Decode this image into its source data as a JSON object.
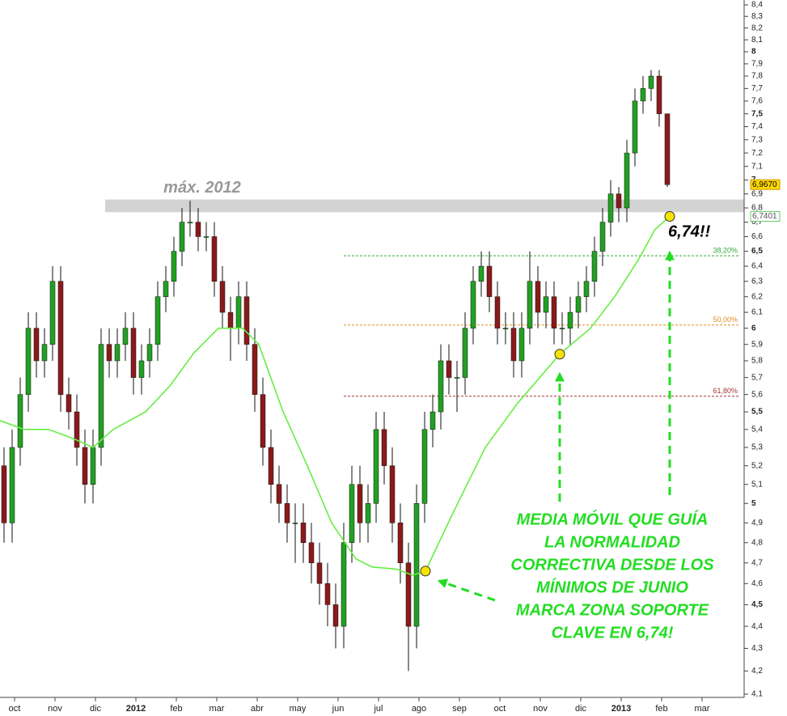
{
  "chart_data": {
    "type": "candlestick",
    "log_scale": true,
    "up_color": "#22a022",
    "down_color": "#8b1a1a",
    "x": [
      -0.26,
      -0.06,
      0.14,
      0.34,
      0.54,
      0.74,
      0.94,
      1.14,
      1.34,
      1.54,
      1.74,
      1.94,
      2.14,
      2.34,
      2.54,
      2.74,
      2.94,
      3.14,
      3.34,
      3.54,
      3.74,
      3.94,
      4.14,
      4.34,
      4.54,
      4.74,
      4.94,
      5.14,
      5.34,
      5.54,
      5.74,
      5.94,
      6.14,
      6.34,
      6.54,
      6.74,
      6.94,
      7.14,
      7.34,
      7.54,
      7.74,
      7.94,
      8.14,
      8.34,
      8.54,
      8.74,
      8.94,
      9.14,
      9.34,
      9.54,
      9.74,
      9.94,
      10.14,
      10.34,
      10.54,
      10.74,
      10.94,
      11.14,
      11.34,
      11.54,
      11.74,
      11.94,
      12.14,
      12.34,
      12.54,
      12.74,
      12.94,
      13.14,
      13.34,
      13.54,
      13.74,
      13.94,
      14.14,
      14.34,
      14.54,
      14.74,
      14.94,
      15.14,
      15.34,
      15.54,
      15.74,
      15.94,
      16.14
    ],
    "open": [
      5.2,
      4.9,
      5.3,
      5.6,
      6.0,
      5.8,
      5.9,
      6.3,
      5.6,
      5.5,
      5.3,
      5.1,
      5.3,
      5.9,
      5.8,
      5.9,
      6.0,
      5.7,
      5.8,
      5.9,
      6.2,
      6.3,
      6.5,
      6.7,
      6.7,
      6.6,
      6.6,
      6.3,
      6.1,
      6.0,
      6.2,
      5.9,
      5.6,
      5.3,
      5.1,
      5.0,
      4.9,
      4.9,
      4.8,
      4.7,
      4.6,
      4.5,
      4.4,
      4.8,
      5.1,
      4.9,
      5.0,
      5.4,
      5.2,
      4.9,
      4.7,
      4.4,
      5.0,
      5.4,
      5.5,
      5.8,
      5.7,
      5.7,
      6.0,
      6.3,
      6.4,
      6.2,
      6.0,
      6.0,
      5.8,
      6.0,
      6.3,
      6.1,
      6.2,
      6.0,
      6.0,
      6.1,
      6.2,
      6.3,
      6.5,
      6.7,
      6.9,
      6.8,
      7.2,
      7.6,
      7.7,
      7.8,
      7.5
    ],
    "high": [
      5.3,
      5.4,
      5.7,
      6.1,
      6.1,
      6.0,
      6.4,
      6.4,
      5.7,
      5.6,
      5.4,
      5.4,
      6.0,
      6.0,
      6.0,
      6.1,
      6.1,
      5.9,
      6.0,
      6.3,
      6.4,
      6.6,
      6.8,
      6.85,
      6.8,
      6.7,
      6.7,
      6.4,
      6.2,
      6.3,
      6.3,
      6.0,
      5.7,
      5.4,
      5.2,
      5.1,
      5.0,
      5.0,
      4.9,
      4.8,
      4.7,
      4.6,
      4.9,
      5.2,
      5.2,
      5.1,
      5.5,
      5.5,
      5.3,
      5.0,
      4.8,
      5.1,
      5.5,
      5.6,
      5.9,
      5.9,
      5.8,
      6.1,
      6.4,
      6.5,
      6.5,
      6.3,
      6.1,
      6.1,
      6.1,
      6.5,
      6.4,
      6.3,
      6.3,
      6.1,
      6.2,
      6.3,
      6.4,
      6.6,
      6.8,
      7.0,
      6.95,
      7.3,
      7.7,
      7.8,
      7.85,
      7.85,
      7.5
    ],
    "low": [
      4.8,
      4.8,
      5.2,
      5.5,
      5.7,
      5.7,
      5.8,
      5.5,
      5.4,
      5.2,
      5.0,
      5.0,
      5.2,
      5.7,
      5.7,
      5.8,
      5.6,
      5.6,
      5.7,
      5.8,
      6.1,
      6.2,
      6.4,
      6.6,
      6.5,
      6.5,
      6.2,
      6.0,
      5.8,
      5.9,
      5.8,
      5.5,
      5.2,
      5.0,
      4.9,
      4.8,
      4.7,
      4.7,
      4.6,
      4.5,
      4.4,
      4.3,
      4.3,
      4.7,
      4.8,
      4.8,
      4.9,
      5.1,
      4.8,
      4.6,
      4.2,
      4.3,
      4.9,
      5.3,
      5.4,
      5.6,
      5.5,
      5.6,
      5.9,
      6.2,
      6.1,
      5.9,
      5.9,
      5.7,
      5.7,
      5.9,
      6.0,
      6.0,
      5.9,
      5.9,
      5.9,
      6.0,
      6.1,
      6.2,
      6.4,
      6.6,
      6.7,
      6.7,
      7.1,
      7.5,
      7.6,
      7.4,
      6.95
    ],
    "close": [
      4.9,
      5.3,
      5.6,
      6.0,
      5.8,
      5.9,
      6.3,
      5.6,
      5.5,
      5.3,
      5.1,
      5.3,
      5.9,
      5.8,
      5.9,
      6.0,
      5.7,
      5.8,
      5.9,
      6.2,
      6.3,
      6.5,
      6.7,
      6.7,
      6.6,
      6.6,
      6.3,
      6.1,
      6.0,
      6.2,
      5.9,
      5.6,
      5.3,
      5.1,
      5.0,
      4.9,
      4.9,
      4.8,
      4.7,
      4.6,
      4.5,
      4.4,
      4.8,
      5.1,
      4.9,
      5.0,
      5.4,
      5.2,
      4.9,
      4.7,
      4.4,
      5.0,
      5.4,
      5.5,
      5.8,
      5.7,
      5.7,
      6.0,
      6.3,
      6.4,
      6.2,
      6.0,
      6.0,
      5.8,
      6.0,
      6.3,
      6.1,
      6.2,
      6.0,
      6.0,
      6.1,
      6.2,
      6.3,
      6.5,
      6.7,
      6.9,
      6.8,
      7.2,
      7.6,
      7.7,
      7.8,
      7.5,
      6.967
    ],
    "moving_average": {
      "color": "#66ee44",
      "x": [
        -0.36,
        0.24,
        0.84,
        1.44,
        1.94,
        2.44,
        3.24,
        3.84,
        4.44,
        5.04,
        5.64,
        6.04,
        6.64,
        7.24,
        7.84,
        8.44,
        8.84,
        9.44,
        9.84,
        10.16,
        10.84,
        11.64,
        12.44,
        13.48,
        14.24,
        14.84,
        15.44,
        15.84,
        16.2
      ],
      "values": [
        5.45,
        5.4,
        5.4,
        5.35,
        5.3,
        5.4,
        5.5,
        5.65,
        5.85,
        6.0,
        6.0,
        5.9,
        5.5,
        5.2,
        4.9,
        4.72,
        4.68,
        4.67,
        4.64,
        4.66,
        4.95,
        5.3,
        5.55,
        5.84,
        6.0,
        6.2,
        6.45,
        6.65,
        6.74
      ]
    },
    "markers": {
      "color": "#f5e400",
      "x": [
        10.16,
        13.48,
        16.2
      ],
      "values": [
        4.66,
        5.84,
        6.74
      ]
    },
    "levels": [
      {
        "value": 6.47,
        "label": "38,20%",
        "color": "#33aa33"
      },
      {
        "value": 6.02,
        "label": "50,00%",
        "color": "#e09020"
      },
      {
        "value": 5.59,
        "label": "61,80%",
        "color": "#aa3333"
      }
    ],
    "zone": {
      "label": "máx. 2012",
      "low": 6.77,
      "high": 6.86
    },
    "price_tags": [
      {
        "value": 6.967,
        "label": "6,9670",
        "color": "#ffd700"
      },
      {
        "value": 6.7401,
        "label": "6,7401",
        "color": "#ffffff"
      }
    ],
    "support_label": "6,74!!",
    "annotation": [
      "MEDIA MÓVIL QUE GUÍA",
      "LA NORMALIDAD",
      "CORRECTIVA DESDE LOS",
      "MÍNIMOS DE JUNIO",
      "MARCA ZONA SOPORTE",
      "CLAVE EN 6,74!"
    ],
    "xlim": [
      -0.36,
      18.04
    ],
    "xticks": [
      {
        "value": 0,
        "label": "oct"
      },
      {
        "value": 1,
        "label": "nov"
      },
      {
        "value": 2,
        "label": "dic"
      },
      {
        "value": 3,
        "label": "2012"
      },
      {
        "value": 4,
        "label": "feb"
      },
      {
        "value": 5,
        "label": "mar"
      },
      {
        "value": 6,
        "label": "abr"
      },
      {
        "value": 7,
        "label": "may"
      },
      {
        "value": 8,
        "label": "jun"
      },
      {
        "value": 9,
        "label": "jul"
      },
      {
        "value": 10,
        "label": "ago"
      },
      {
        "value": 11,
        "label": "sep"
      },
      {
        "value": 12,
        "label": "oct"
      },
      {
        "value": 13,
        "label": "nov"
      },
      {
        "value": 14,
        "label": "dic"
      },
      {
        "value": 15,
        "label": "2013"
      },
      {
        "value": 16,
        "label": "feb"
      },
      {
        "value": 17,
        "label": "mar"
      }
    ],
    "ylim": [
      4.1,
      8.4
    ],
    "yticks": [
      {
        "value": 4.1,
        "label": "4,1"
      },
      {
        "value": 4.2,
        "label": "4,2"
      },
      {
        "value": 4.3,
        "label": "4,3"
      },
      {
        "value": 4.4,
        "label": "4,4"
      },
      {
        "value": 4.5,
        "label": "4,5"
      },
      {
        "value": 4.6,
        "label": "4,6"
      },
      {
        "value": 4.7,
        "label": "4,7"
      },
      {
        "value": 4.8,
        "label": "4,8"
      },
      {
        "value": 4.9,
        "label": "4,9"
      },
      5,
      {
        "value": 5.1,
        "label": "5,1"
      },
      {
        "value": 5.2,
        "label": "5,2"
      },
      {
        "value": 5.3,
        "label": "5,3"
      },
      {
        "value": 5.4,
        "label": "5,4"
      },
      {
        "value": 5.5,
        "label": "5,5"
      },
      {
        "value": 5.6,
        "label": "5,6"
      },
      {
        "value": 5.7,
        "label": "5,7"
      },
      {
        "value": 5.8,
        "label": "5,8"
      },
      {
        "value": 5.9,
        "label": "5,9"
      },
      6,
      {
        "value": 6.1,
        "label": "6,1"
      },
      {
        "value": 6.2,
        "label": "6,2"
      },
      {
        "value": 6.3,
        "label": "6,3"
      },
      {
        "value": 6.4,
        "label": "6,4"
      },
      {
        "value": 6.5,
        "label": "6,5"
      },
      {
        "value": 6.6,
        "label": "6,6"
      },
      {
        "value": 6.7,
        "label": "6,7"
      },
      {
        "value": 6.8,
        "label": "6,8"
      },
      {
        "value": 6.9,
        "label": "6,9"
      },
      7,
      {
        "value": 7.1,
        "label": "7,1"
      },
      {
        "value": 7.2,
        "label": "7,2"
      },
      {
        "value": 7.3,
        "label": "7,3"
      },
      {
        "value": 7.4,
        "label": "7,4"
      },
      {
        "value": 7.5,
        "label": "7,5"
      },
      {
        "value": 7.6,
        "label": "7,6"
      },
      {
        "value": 7.7,
        "label": "7,7"
      },
      {
        "value": 7.8,
        "label": "7,8"
      },
      {
        "value": 7.9,
        "label": "7,9"
      },
      8,
      {
        "value": 8.1,
        "label": "8,1"
      },
      {
        "value": 8.2,
        "label": "8,2"
      },
      {
        "value": 8.3,
        "label": "8,3"
      },
      {
        "value": 8.4,
        "label": "8,4"
      }
    ]
  }
}
